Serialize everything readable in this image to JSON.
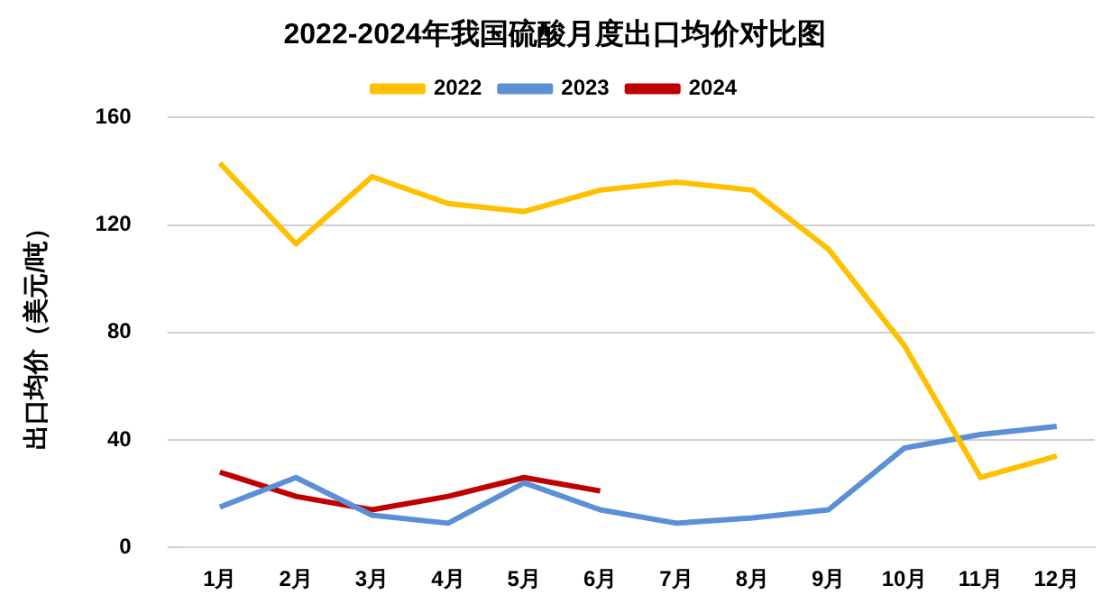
{
  "chart_data": {
    "type": "line",
    "title": "2022-2024年我国硫酸月度出口均价对比图",
    "ylabel": "出口均价（美元/吨）",
    "categories": [
      "1月",
      "2月",
      "3月",
      "4月",
      "5月",
      "6月",
      "7月",
      "8月",
      "9月",
      "10月",
      "11月",
      "12月"
    ],
    "series": [
      {
        "name": "2022",
        "color": "#ffc000",
        "values": [
          143,
          113,
          138,
          128,
          125,
          133,
          136,
          133,
          111,
          75,
          26,
          34
        ]
      },
      {
        "name": "2023",
        "color": "#5b8fd6",
        "values": [
          15,
          26,
          12,
          9,
          24,
          14,
          9,
          11,
          14,
          37,
          42,
          45
        ]
      },
      {
        "name": "2024",
        "color": "#c00000",
        "values": [
          28,
          19,
          14,
          19,
          26,
          21,
          null,
          null,
          null,
          null,
          null,
          null
        ]
      }
    ],
    "ylim": [
      0,
      160
    ],
    "yticks": [
      0,
      40,
      80,
      120,
      160
    ],
    "grid": "y",
    "legend": "top",
    "marker": "none",
    "line_style": "solid"
  }
}
